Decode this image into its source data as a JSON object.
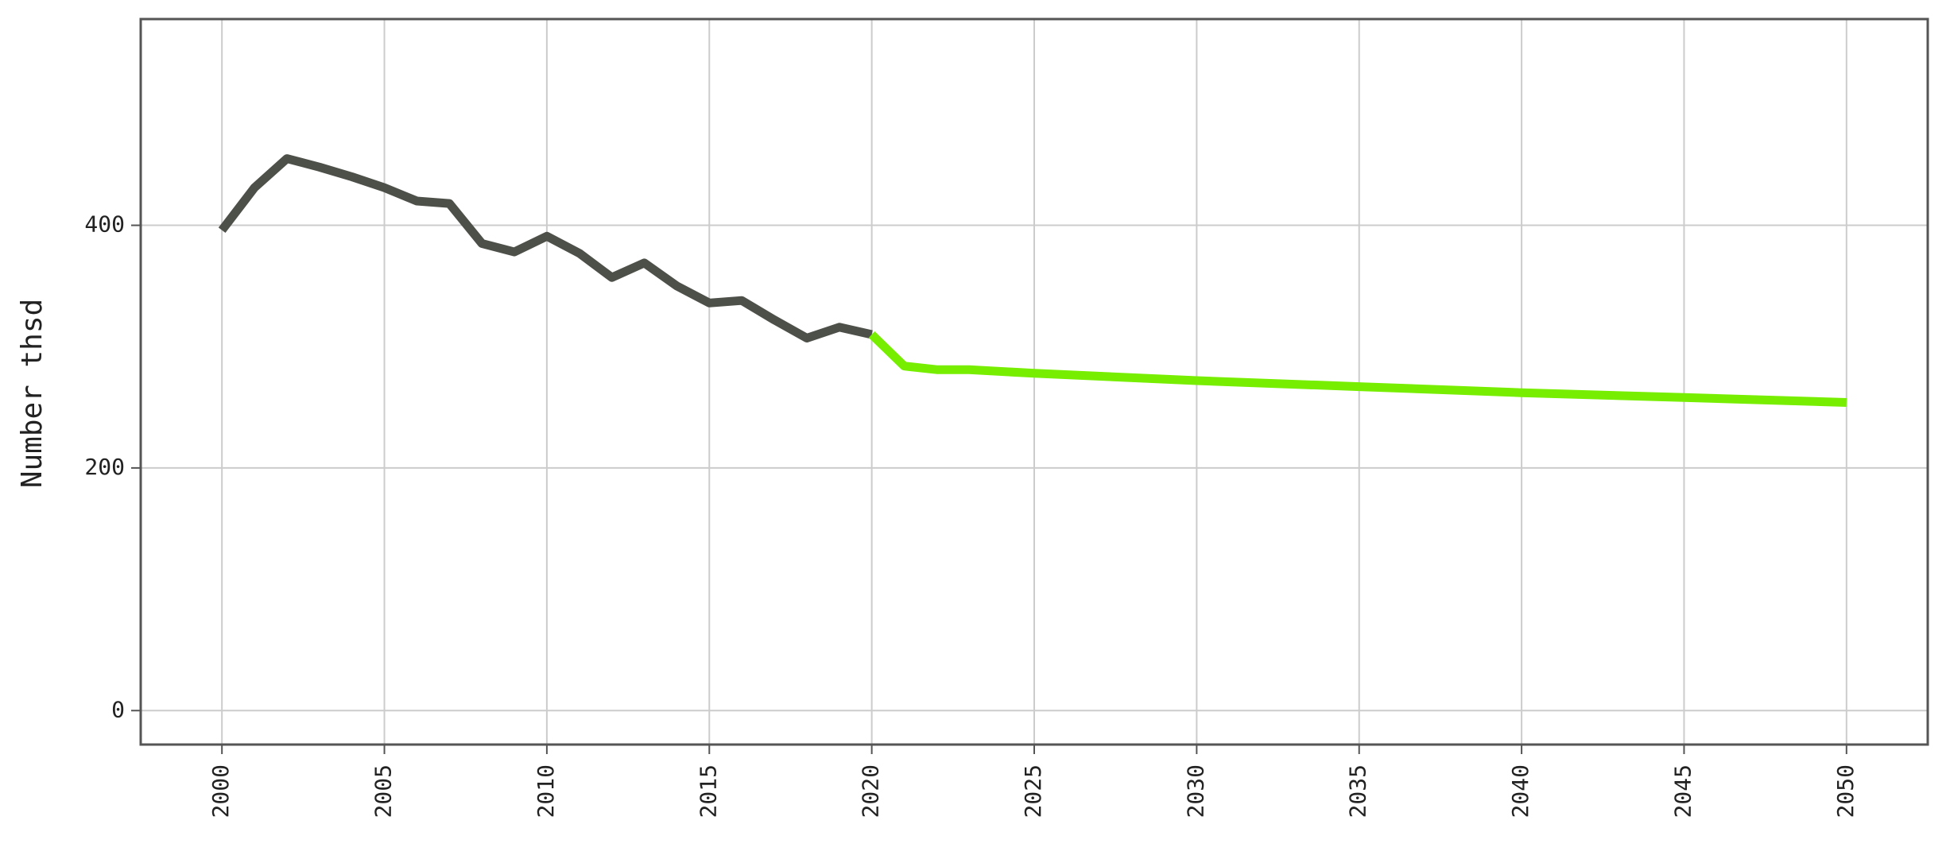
{
  "chart_data": {
    "type": "line",
    "title": "",
    "xlabel": "",
    "ylabel": "Number thsd",
    "xlim": [
      1997.5,
      2052.5
    ],
    "ylim": [
      -28,
      570
    ],
    "grid": true,
    "legend": "none",
    "x_ticks": [
      {
        "value": 2000,
        "label": "2000"
      },
      {
        "value": 2005,
        "label": "2005"
      },
      {
        "value": 2010,
        "label": "2010"
      },
      {
        "value": 2015,
        "label": "2015"
      },
      {
        "value": 2020,
        "label": "2020"
      },
      {
        "value": 2025,
        "label": "2025"
      },
      {
        "value": 2030,
        "label": "2030"
      },
      {
        "value": 2035,
        "label": "2035"
      },
      {
        "value": 2040,
        "label": "2040"
      },
      {
        "value": 2045,
        "label": "2045"
      },
      {
        "value": 2050,
        "label": "2050"
      }
    ],
    "y_ticks": [
      {
        "value": 0,
        "label": "0"
      },
      {
        "value": 200,
        "label": "200"
      },
      {
        "value": 400,
        "label": "400"
      }
    ],
    "series": [
      {
        "color": "#4d5049",
        "x": [
          2000,
          2001,
          2002,
          2003,
          2004,
          2005,
          2006,
          2007,
          2008,
          2009,
          2010,
          2011,
          2012,
          2013,
          2014,
          2015,
          2016,
          2017,
          2018,
          2019,
          2020
        ],
        "values": [
          396,
          431,
          455,
          448,
          440,
          431,
          420,
          418,
          385,
          378,
          391,
          377,
          357,
          369,
          350,
          336,
          338,
          322,
          307,
          316,
          310
        ]
      },
      {
        "color": "#77ee00",
        "x": [
          2020,
          2021,
          2022,
          2023,
          2025,
          2030,
          2035,
          2040,
          2045,
          2050
        ],
        "values": [
          310,
          284,
          281,
          281,
          278,
          272,
          267,
          262,
          258,
          254
        ]
      }
    ]
  }
}
